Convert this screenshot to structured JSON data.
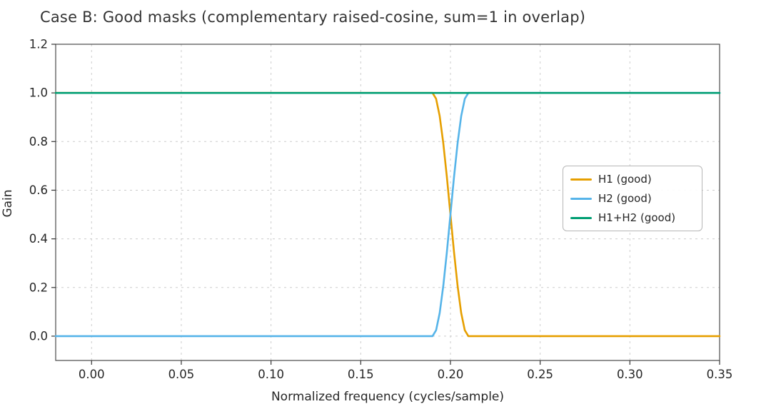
{
  "figure": {
    "title": "Case B: Good masks (complementary raised-cosine, sum=1 in overlap)"
  },
  "chart_data": {
    "type": "line",
    "title": "Case B: Good masks (complementary raised-cosine, sum=1 in overlap)",
    "xlabel": "Normalized frequency (cycles/sample)",
    "ylabel": "Gain",
    "xlim": [
      -0.02,
      0.35
    ],
    "ylim": [
      -0.1,
      1.2
    ],
    "grid": true,
    "grid_style": "dashed",
    "legend_position": "center-right",
    "xticks": [
      0.0,
      0.05,
      0.1,
      0.15,
      0.2,
      0.25,
      0.3,
      0.35
    ],
    "xtick_labels": [
      "0.00",
      "0.05",
      "0.10",
      "0.15",
      "0.20",
      "0.25",
      "0.30",
      "0.35"
    ],
    "yticks": [
      0.0,
      0.2,
      0.4,
      0.6,
      0.8,
      1.0,
      1.2
    ],
    "ytick_labels": [
      "0.0",
      "0.2",
      "0.4",
      "0.6",
      "0.8",
      "1.0",
      "1.2"
    ],
    "x": [
      -0.02,
      0.0,
      0.05,
      0.1,
      0.15,
      0.18,
      0.19,
      0.192,
      0.194,
      0.196,
      0.198,
      0.2,
      0.202,
      0.204,
      0.206,
      0.208,
      0.21,
      0.22,
      0.25,
      0.3,
      0.35
    ],
    "series": [
      {
        "name": "H1 (good)",
        "color": "#E69F00",
        "values": [
          1,
          1,
          1,
          1,
          1,
          1,
          1,
          0.976,
          0.905,
          0.794,
          0.655,
          0.5,
          0.345,
          0.206,
          0.095,
          0.024,
          0,
          0,
          0,
          0,
          0
        ]
      },
      {
        "name": "H2 (good)",
        "color": "#56B4E9",
        "values": [
          0,
          0,
          0,
          0,
          0,
          0,
          0,
          0.024,
          0.095,
          0.206,
          0.345,
          0.5,
          0.655,
          0.794,
          0.905,
          0.976,
          1,
          1,
          1,
          1,
          1
        ]
      },
      {
        "name": "H1+H2 (good)",
        "color": "#009E73",
        "values": [
          1,
          1,
          1,
          1,
          1,
          1,
          1,
          1,
          1,
          1,
          1,
          1,
          1,
          1,
          1,
          1,
          1,
          1,
          1,
          1,
          1
        ]
      }
    ]
  }
}
